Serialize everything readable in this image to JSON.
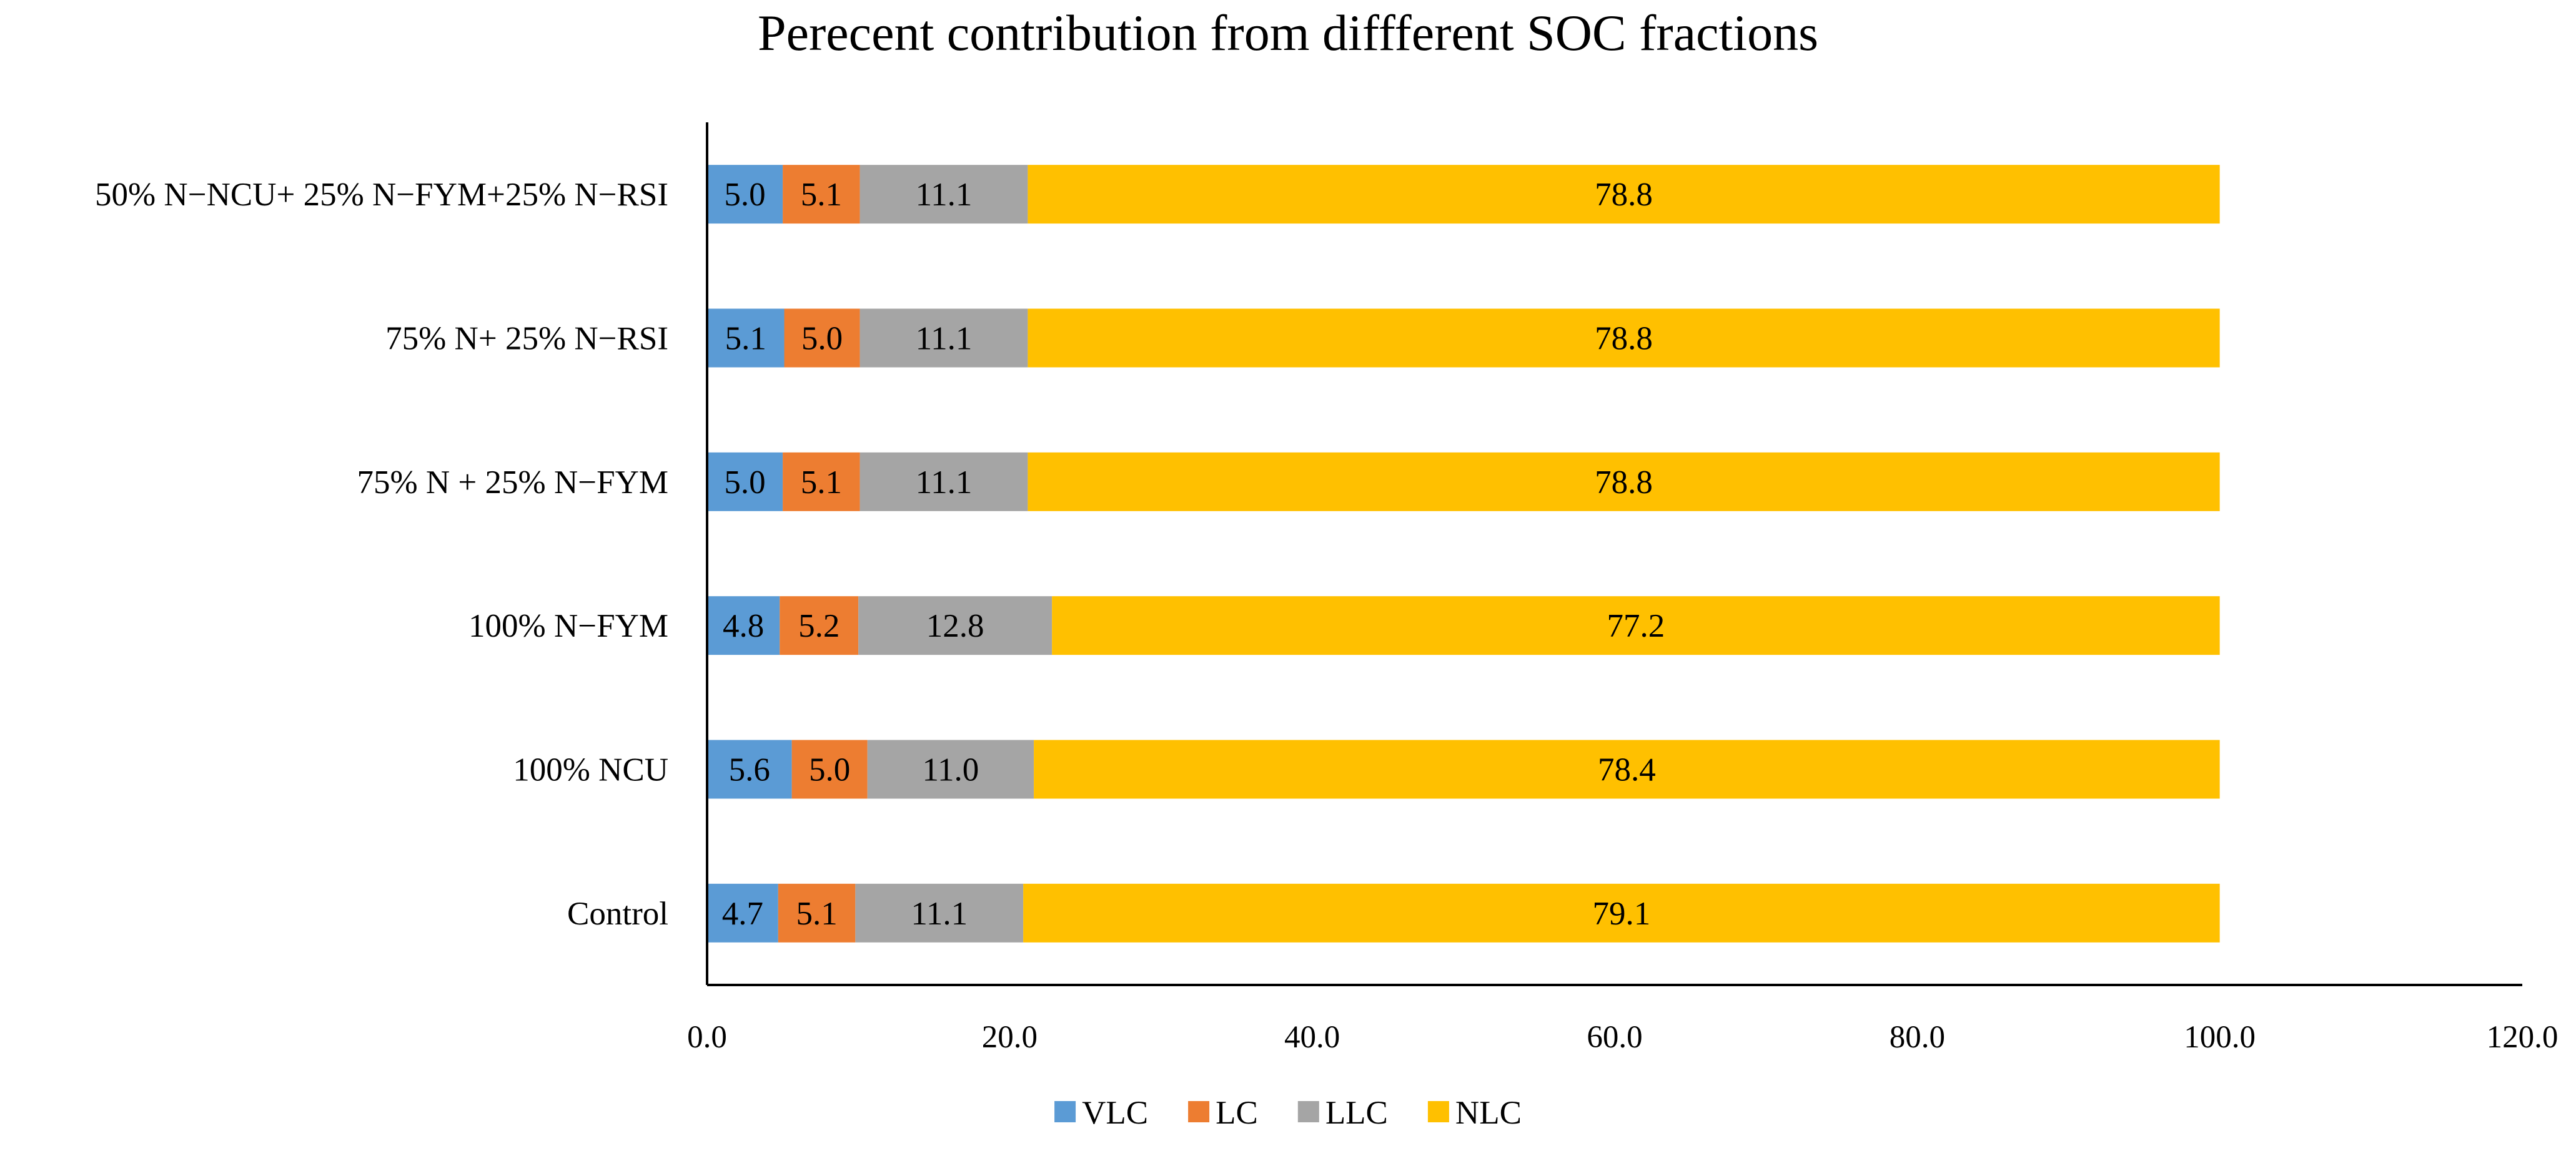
{
  "chart_data": {
    "type": "bar",
    "orientation": "horizontal",
    "stacked": true,
    "title": "Perecent contribution from diffferent SOC fractions",
    "xlabel": "",
    "ylabel": "",
    "xlim": [
      0,
      120
    ],
    "x_ticks": [
      0,
      20,
      40,
      60,
      80,
      100,
      120
    ],
    "x_tick_labels": [
      "0.0",
      "20.0",
      "40.0",
      "60.0",
      "80.0",
      "100.0",
      "120.0"
    ],
    "grid": false,
    "legend_position": "bottom",
    "categories": [
      "Control",
      "100% NCU",
      "100% N−FYM",
      "75% N + 25% N−FYM",
      "75% N+ 25% N−RSI",
      "50% N−NCU+ 25% N−FYM+25% N−RSI"
    ],
    "series": [
      {
        "name": "VLC",
        "color": "#5B9BD5",
        "values": [
          4.7,
          5.6,
          4.8,
          5.0,
          5.1,
          5.0
        ],
        "labels": [
          "4.7",
          "5.6",
          "4.8",
          "5.0",
          "5.1",
          "5.0"
        ]
      },
      {
        "name": "LC",
        "color": "#ED7D31",
        "values": [
          5.1,
          5.0,
          5.2,
          5.1,
          5.0,
          5.1
        ],
        "labels": [
          "5.1",
          "5.0",
          "5.2",
          "5.1",
          "5.0",
          "5.1"
        ]
      },
      {
        "name": "LLC",
        "color": "#A5A5A5",
        "values": [
          11.1,
          11.0,
          12.8,
          11.1,
          11.1,
          11.1
        ],
        "labels": [
          "11.1",
          "11.0",
          "12.8",
          "11.1",
          "11.1",
          "11.1"
        ]
      },
      {
        "name": "NLC",
        "color": "#FFC000",
        "values": [
          79.1,
          78.4,
          77.2,
          78.8,
          78.8,
          78.8
        ],
        "labels": [
          "79.1",
          "78.4",
          "77.2",
          "78.8",
          "78.8",
          "78.8"
        ]
      }
    ]
  }
}
